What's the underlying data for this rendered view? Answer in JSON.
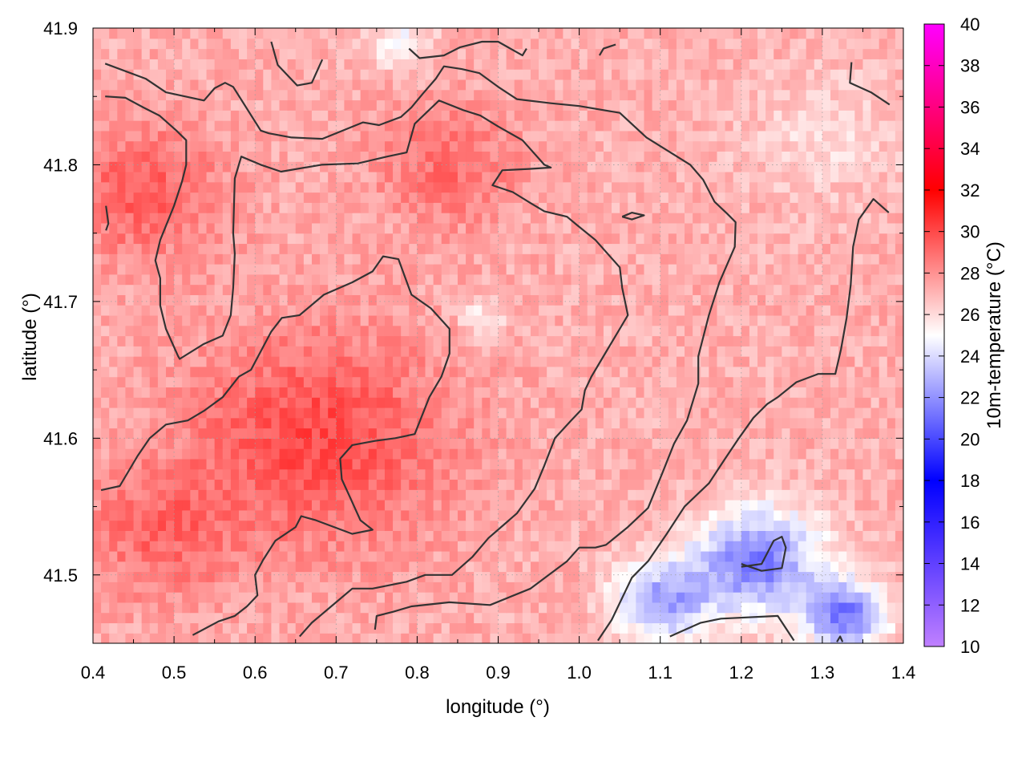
{
  "chart_data": {
    "type": "heatmap",
    "title": "",
    "xlabel": "longitude (°)",
    "ylabel": "latitude (°)",
    "xlim": [
      0.4,
      1.4
    ],
    "ylim": [
      41.45,
      41.9
    ],
    "xticks": [
      0.4,
      0.5,
      0.6,
      0.7,
      0.8,
      0.9,
      1.0,
      1.1,
      1.2,
      1.3,
      1.4
    ],
    "xtick_labels": [
      "0.4",
      "0.5",
      "0.6",
      "0.7",
      "0.8",
      "0.9",
      "1.0",
      "1.1",
      "1.2",
      "1.3",
      "1.4"
    ],
    "yticks": [
      41.5,
      41.6,
      41.7,
      41.8,
      41.9
    ],
    "ytick_labels": [
      "41.5",
      "41.6",
      "41.7",
      "41.8",
      "41.9"
    ],
    "grid": true,
    "colorbar": {
      "label": "10m-temperature (°C)",
      "range": [
        10,
        40
      ],
      "ticks": [
        10,
        12,
        14,
        16,
        18,
        20,
        22,
        24,
        26,
        28,
        30,
        32,
        34,
        36,
        38,
        40
      ],
      "tick_labels": [
        "10",
        "12",
        "14",
        "16",
        "18",
        "20",
        "22",
        "24",
        "26",
        "28",
        "30",
        "32",
        "34",
        "36",
        "38",
        "40"
      ],
      "colors": [
        {
          "value": 10,
          "color": "#c080ff"
        },
        {
          "value": 18,
          "color": "#0000ff"
        },
        {
          "value": 25,
          "color": "#ffffff"
        },
        {
          "value": 32,
          "color": "#ff0000"
        },
        {
          "value": 40,
          "color": "#ff00ff"
        }
      ]
    },
    "field_hotspots": [
      {
        "lon": 0.68,
        "lat": 41.6,
        "temp": 30.0,
        "spread": 0.16
      },
      {
        "lon": 0.48,
        "lat": 41.53,
        "temp": 29.0,
        "spread": 0.1
      },
      {
        "lon": 0.46,
        "lat": 41.78,
        "temp": 29.5,
        "spread": 0.1
      },
      {
        "lon": 0.84,
        "lat": 41.8,
        "temp": 29.0,
        "spread": 0.09
      },
      {
        "lon": 0.88,
        "lat": 41.69,
        "temp": 25.5,
        "spread": 0.03
      },
      {
        "lon": 1.22,
        "lat": 41.51,
        "temp": 21.5,
        "spread": 0.08
      },
      {
        "lon": 1.33,
        "lat": 41.47,
        "temp": 21.5,
        "spread": 0.05
      },
      {
        "lon": 1.1,
        "lat": 41.48,
        "temp": 22.5,
        "spread": 0.06
      },
      {
        "lon": 0.78,
        "lat": 41.89,
        "temp": 25.0,
        "spread": 0.04
      },
      {
        "lon": 1.3,
        "lat": 41.82,
        "temp": 26.0,
        "spread": 0.1
      }
    ],
    "field_base_temp": 27.2,
    "contours": [
      {
        "name": "contour-outer-west",
        "points": [
          [
            0.415,
            41.874
          ],
          [
            0.465,
            41.863
          ],
          [
            0.49,
            41.853
          ],
          [
            0.537,
            41.847
          ],
          [
            0.55,
            41.856
          ],
          [
            0.563,
            41.86
          ],
          [
            0.573,
            41.857
          ],
          [
            0.607,
            41.825
          ],
          [
            0.617,
            41.823
          ],
          [
            0.645,
            41.82
          ],
          [
            0.683,
            41.819
          ],
          [
            0.733,
            41.831
          ],
          [
            0.753,
            41.829
          ],
          [
            0.78,
            41.835
          ],
          [
            0.793,
            41.842
          ],
          [
            0.807,
            41.852
          ],
          [
            0.823,
            41.863
          ],
          [
            0.833,
            41.872
          ],
          [
            0.855,
            41.87
          ],
          [
            0.877,
            41.867
          ],
          [
            0.9,
            41.857
          ],
          [
            0.923,
            41.848
          ],
          [
            0.965,
            41.845
          ],
          [
            1.0,
            41.843
          ],
          [
            1.05,
            41.838
          ],
          [
            1.083,
            41.82
          ],
          [
            1.11,
            41.81
          ],
          [
            1.137,
            41.8
          ],
          [
            1.153,
            41.789
          ],
          [
            1.167,
            41.773
          ],
          [
            1.183,
            41.764
          ],
          [
            1.193,
            41.758
          ],
          [
            1.192,
            41.74
          ],
          [
            1.173,
            41.714
          ],
          [
            1.16,
            41.69
          ],
          [
            1.147,
            41.66
          ],
          [
            1.147,
            41.64
          ],
          [
            1.133,
            41.613
          ],
          [
            1.117,
            41.596
          ],
          [
            1.103,
            41.575
          ],
          [
            1.085,
            41.549
          ],
          [
            1.06,
            41.535
          ],
          [
            1.033,
            41.522
          ],
          [
            1.02,
            41.52
          ],
          [
            1.0,
            41.52
          ],
          [
            0.985,
            41.51
          ],
          [
            0.94,
            41.49
          ],
          [
            0.89,
            41.478
          ],
          [
            0.84,
            41.48
          ],
          [
            0.793,
            41.477
          ],
          [
            0.77,
            41.473
          ],
          [
            0.75,
            41.47
          ],
          [
            0.748,
            41.46
          ]
        ]
      },
      {
        "name": "contour-inner-west",
        "points": [
          [
            0.415,
            41.85
          ],
          [
            0.44,
            41.849
          ],
          [
            0.462,
            41.842
          ],
          [
            0.482,
            41.836
          ],
          [
            0.503,
            41.825
          ],
          [
            0.515,
            41.818
          ],
          [
            0.515,
            41.8
          ],
          [
            0.51,
            41.788
          ],
          [
            0.5,
            41.77
          ],
          [
            0.483,
            41.745
          ],
          [
            0.477,
            41.73
          ],
          [
            0.483,
            41.717
          ],
          [
            0.483,
            41.697
          ],
          [
            0.49,
            41.68
          ],
          [
            0.505,
            41.66
          ],
          [
            0.507,
            41.658
          ],
          [
            0.537,
            41.669
          ],
          [
            0.56,
            41.675
          ],
          [
            0.57,
            41.69
          ],
          [
            0.573,
            41.71
          ],
          [
            0.575,
            41.735
          ],
          [
            0.573,
            41.75
          ],
          [
            0.575,
            41.79
          ],
          [
            0.583,
            41.806
          ],
          [
            0.607,
            41.8
          ],
          [
            0.632,
            41.795
          ],
          [
            0.682,
            41.8
          ],
          [
            0.727,
            41.801
          ],
          [
            0.763,
            41.806
          ],
          [
            0.787,
            41.809
          ],
          [
            0.797,
            41.83
          ],
          [
            0.827,
            41.847
          ],
          [
            0.857,
            41.84
          ],
          [
            0.878,
            41.836
          ],
          [
            0.9,
            41.828
          ],
          [
            0.93,
            41.818
          ],
          [
            0.957,
            41.8
          ],
          [
            0.965,
            41.798
          ],
          [
            0.938,
            41.797
          ],
          [
            0.905,
            41.796
          ],
          [
            0.893,
            41.785
          ],
          [
            0.918,
            41.78
          ],
          [
            0.94,
            41.772
          ],
          [
            0.957,
            41.766
          ],
          [
            0.985,
            41.762
          ],
          [
            0.997,
            41.756
          ],
          [
            1.02,
            41.745
          ],
          [
            1.05,
            41.725
          ],
          [
            1.053,
            41.71
          ],
          [
            1.06,
            41.69
          ],
          [
            1.05,
            41.68
          ],
          [
            1.035,
            41.665
          ],
          [
            1.015,
            41.645
          ],
          [
            1.007,
            41.635
          ],
          [
            1.003,
            41.621
          ],
          [
            0.99,
            41.613
          ],
          [
            0.97,
            41.6
          ],
          [
            0.957,
            41.58
          ],
          [
            0.945,
            41.563
          ],
          [
            0.923,
            41.545
          ],
          [
            0.888,
            41.527
          ],
          [
            0.868,
            41.513
          ],
          [
            0.843,
            41.5
          ],
          [
            0.81,
            41.5
          ],
          [
            0.787,
            41.495
          ],
          [
            0.745,
            41.49
          ],
          [
            0.72,
            41.49
          ],
          [
            0.69,
            41.475
          ],
          [
            0.67,
            41.465
          ],
          [
            0.655,
            41.455
          ]
        ]
      },
      {
        "name": "contour-central",
        "points": [
          [
            0.41,
            41.562
          ],
          [
            0.433,
            41.565
          ],
          [
            0.455,
            41.587
          ],
          [
            0.47,
            41.6
          ],
          [
            0.49,
            41.61
          ],
          [
            0.517,
            41.613
          ],
          [
            0.537,
            41.62
          ],
          [
            0.56,
            41.63
          ],
          [
            0.58,
            41.645
          ],
          [
            0.595,
            41.65
          ],
          [
            0.62,
            41.678
          ],
          [
            0.633,
            41.688
          ],
          [
            0.655,
            41.69
          ],
          [
            0.685,
            41.705
          ],
          [
            0.72,
            41.714
          ],
          [
            0.745,
            41.722
          ],
          [
            0.758,
            41.733
          ],
          [
            0.777,
            41.731
          ],
          [
            0.793,
            41.705
          ],
          [
            0.817,
            41.695
          ],
          [
            0.84,
            41.68
          ],
          [
            0.84,
            41.662
          ],
          [
            0.83,
            41.645
          ],
          [
            0.815,
            41.63
          ],
          [
            0.797,
            41.603
          ],
          [
            0.773,
            41.6
          ],
          [
            0.748,
            41.598
          ],
          [
            0.72,
            41.595
          ],
          [
            0.705,
            41.585
          ],
          [
            0.707,
            41.57
          ],
          [
            0.717,
            41.557
          ],
          [
            0.73,
            41.54
          ],
          [
            0.745,
            41.533
          ],
          [
            0.72,
            41.53
          ],
          [
            0.675,
            41.54
          ],
          [
            0.657,
            41.543
          ],
          [
            0.65,
            41.535
          ],
          [
            0.625,
            41.525
          ],
          [
            0.61,
            41.511
          ],
          [
            0.6,
            41.5
          ],
          [
            0.603,
            41.485
          ],
          [
            0.59,
            41.477
          ],
          [
            0.575,
            41.47
          ],
          [
            0.555,
            41.466
          ],
          [
            0.523,
            41.456
          ]
        ]
      },
      {
        "name": "contour-east",
        "points": [
          [
            1.023,
            41.452
          ],
          [
            1.04,
            41.467
          ],
          [
            1.065,
            41.498
          ],
          [
            1.085,
            41.51
          ],
          [
            1.108,
            41.53
          ],
          [
            1.13,
            41.55
          ],
          [
            1.16,
            41.567
          ],
          [
            1.18,
            41.585
          ],
          [
            1.197,
            41.6
          ],
          [
            1.215,
            41.615
          ],
          [
            1.232,
            41.625
          ],
          [
            1.245,
            41.63
          ],
          [
            1.268,
            41.641
          ],
          [
            1.295,
            41.647
          ],
          [
            1.316,
            41.647
          ],
          [
            1.323,
            41.665
          ],
          [
            1.33,
            41.688
          ],
          [
            1.335,
            41.712
          ],
          [
            1.338,
            41.74
          ],
          [
            1.345,
            41.76
          ],
          [
            1.363,
            41.775
          ],
          [
            1.382,
            41.765
          ]
        ]
      },
      {
        "name": "contour-north-left",
        "points": [
          [
            0.62,
            41.89
          ],
          [
            0.628,
            41.873
          ],
          [
            0.652,
            41.858
          ],
          [
            0.67,
            41.86
          ],
          [
            0.683,
            41.877
          ]
        ]
      },
      {
        "name": "contour-north-mid",
        "points": [
          [
            0.79,
            41.885
          ],
          [
            0.803,
            41.878
          ],
          [
            0.833,
            41.88
          ],
          [
            0.853,
            41.886
          ],
          [
            0.88,
            41.89
          ],
          [
            0.9,
            41.89
          ],
          [
            0.93,
            41.88
          ],
          [
            0.935,
            41.885
          ]
        ]
      },
      {
        "name": "contour-north-east",
        "points": [
          [
            1.025,
            41.88
          ],
          [
            1.03,
            41.885
          ],
          [
            1.045,
            41.888
          ]
        ]
      },
      {
        "name": "contour-far-east",
        "points": [
          [
            1.336,
            41.875
          ],
          [
            1.334,
            41.86
          ],
          [
            1.36,
            41.853
          ],
          [
            1.383,
            41.844
          ]
        ]
      },
      {
        "name": "contour-west-edge",
        "points": [
          [
            0.416,
            41.77
          ],
          [
            0.419,
            41.757
          ],
          [
            0.416,
            41.752
          ]
        ]
      },
      {
        "name": "contour-small-loop",
        "points": [
          [
            1.053,
            41.762
          ],
          [
            1.065,
            41.765
          ],
          [
            1.08,
            41.763
          ],
          [
            1.065,
            41.76
          ],
          [
            1.053,
            41.762
          ]
        ]
      },
      {
        "name": "contour-cold-core",
        "points": [
          [
            1.2,
            41.506
          ],
          [
            1.225,
            41.508
          ],
          [
            1.24,
            41.525
          ],
          [
            1.25,
            41.528
          ],
          [
            1.255,
            41.52
          ],
          [
            1.25,
            41.505
          ],
          [
            1.225,
            41.503
          ],
          [
            1.2,
            41.508
          ]
        ]
      },
      {
        "name": "contour-cold-south",
        "points": [
          [
            1.112,
            41.455
          ],
          [
            1.15,
            41.465
          ],
          [
            1.175,
            41.468
          ],
          [
            1.245,
            41.47
          ],
          [
            1.265,
            41.452
          ]
        ]
      },
      {
        "name": "contour-south-tick",
        "points": [
          [
            1.318,
            41.451
          ],
          [
            1.322,
            41.455
          ],
          [
            1.325,
            41.451
          ]
        ]
      }
    ]
  }
}
